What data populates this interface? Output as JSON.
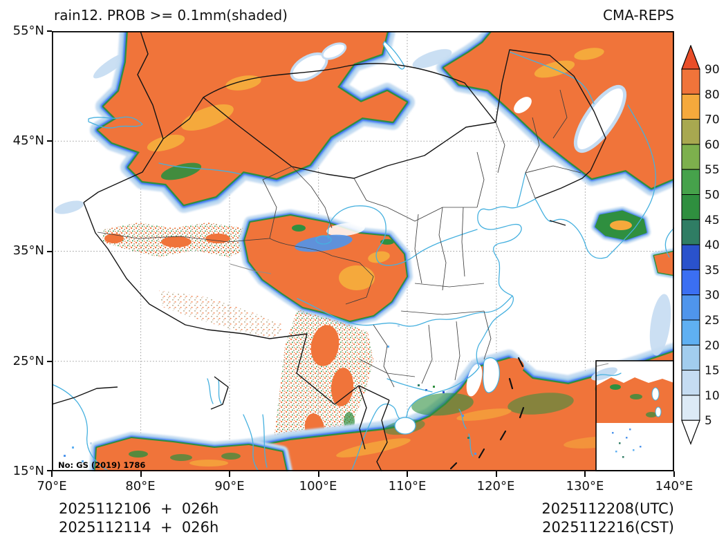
{
  "titles": {
    "left": "rain12. PROB >= 0.1mm(shaded)",
    "right": "CMA-REPS"
  },
  "axes": {
    "x_tick_labels": [
      "70°E",
      "80°E",
      "90°E",
      "100°E",
      "110°E",
      "120°E",
      "130°E",
      "140°E"
    ],
    "y_tick_labels": [
      "55°N",
      "45°N",
      "35°N",
      "25°N",
      "15°N"
    ]
  },
  "footer": {
    "init_utc": "2025112106  +  026h",
    "init_cst": "2025112114  +  026h",
    "valid_utc": "2025112208(UTC)",
    "valid_cst": "2025112216(CST)"
  },
  "map_note": "No: GS (2019) 1786",
  "colorbar": {
    "tick_labels": [
      "90",
      "80",
      "70",
      "60",
      "55",
      "50",
      "45",
      "40",
      "35",
      "30",
      "25",
      "20",
      "15",
      "10",
      "5"
    ],
    "segment_colors_top_to_bottom": [
      "#f0743a",
      "#f5a93c",
      "#a8a850",
      "#7db04d",
      "#46a24b",
      "#2f8f3f",
      "#2f7d64",
      "#2a52cc",
      "#3b6ff2",
      "#4f95ec",
      "#5fb0f2",
      "#a2cdee",
      "#c5dcf2",
      "#dceaf6"
    ],
    "extend_above_color": "#e94e29",
    "extend_below_color": "#ffffff"
  },
  "palette": {
    "orange": "#f0743a",
    "deep": "#e94e29",
    "amber": "#f5a93c",
    "olive": "#a8a850",
    "ygreen": "#7db04d",
    "grn2": "#46a24b",
    "green": "#2f8f3f",
    "teal": "#2f7d64",
    "navy": "#2a52cc",
    "vblue": "#3b6ff2",
    "mblue": "#4f95ec",
    "sky": "#5fb0f2",
    "light": "#a2cdee",
    "pale": "#c5dcf2",
    "vpale": "#dceaf6",
    "tan": "#b3a27e",
    "cyan": "#45b0df",
    "grid": "#9a9a9a",
    "prov": "#3c3c3c"
  }
}
